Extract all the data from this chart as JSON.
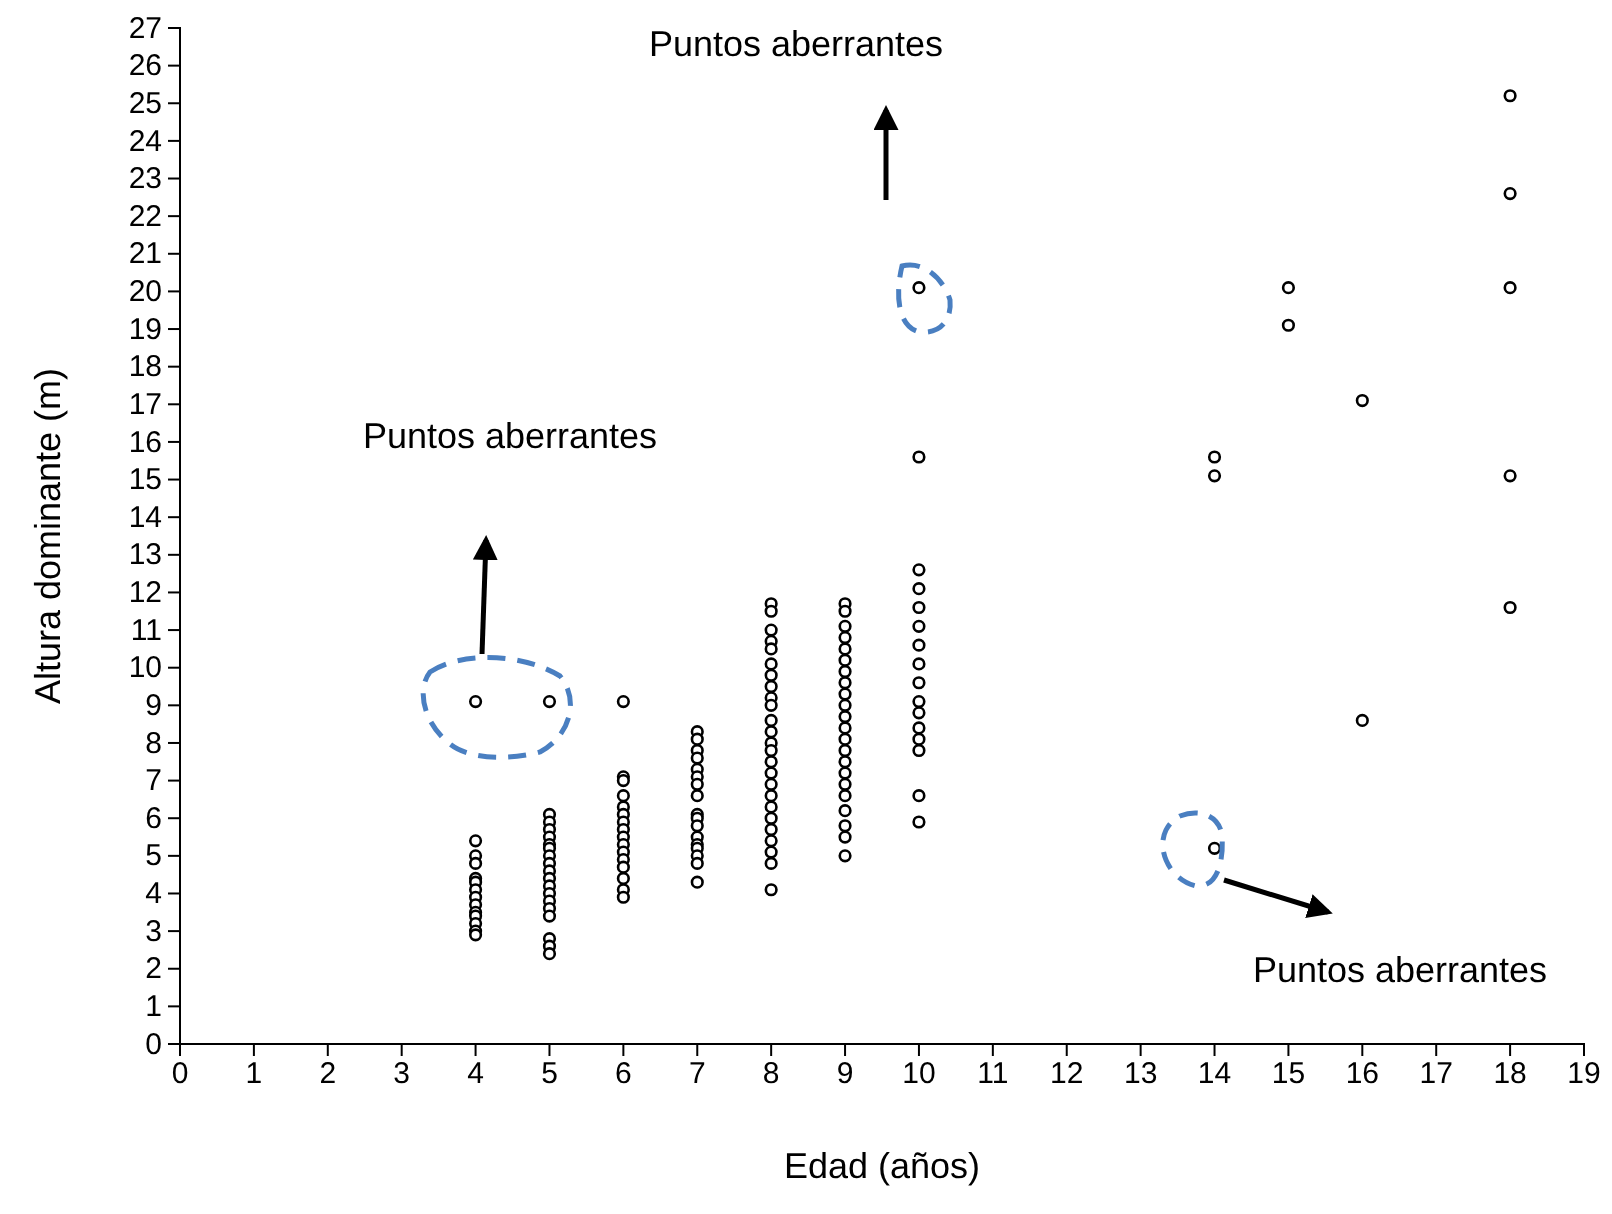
{
  "chart_data": {
    "type": "scatter",
    "xlabel": "Edad (años)",
    "ylabel": "Altura dominante (m)",
    "marker": "circle",
    "grid": false,
    "xlim": [
      0,
      19
    ],
    "xticks": [
      0,
      1,
      2,
      3,
      4,
      5,
      6,
      7,
      8,
      9,
      10,
      11,
      12,
      13,
      14,
      15,
      16,
      17,
      18,
      19
    ],
    "ylim": [
      0,
      27
    ],
    "yticks": [
      0,
      1,
      2,
      3,
      4,
      5,
      6,
      7,
      8,
      9,
      10,
      11,
      12,
      13,
      14,
      15,
      16,
      17,
      18,
      19,
      20,
      21,
      22,
      23,
      24,
      25,
      26,
      27
    ],
    "series": [
      {
        "color": "#000000",
        "x": [
          4,
          4,
          4,
          4,
          4,
          4,
          4,
          4,
          4,
          4,
          4,
          4,
          4,
          4,
          5,
          5,
          5,
          5,
          5,
          5,
          5,
          5,
          5,
          5,
          5,
          5,
          5,
          5,
          5,
          5,
          5,
          5,
          5,
          6,
          6,
          6,
          6,
          6,
          6,
          6,
          6,
          6,
          6,
          6,
          6,
          6,
          6,
          6,
          6,
          7,
          7,
          7,
          7,
          7,
          7,
          7,
          7,
          7,
          7,
          7,
          7,
          7,
          7,
          7,
          7,
          7,
          8,
          8,
          8,
          8,
          8,
          8,
          8,
          8,
          8,
          8,
          8,
          8,
          8,
          8,
          8,
          8,
          8,
          8,
          8,
          8,
          8,
          8,
          8,
          8,
          8,
          9,
          9,
          9,
          9,
          9,
          9,
          9,
          9,
          9,
          9,
          9,
          9,
          9,
          9,
          9,
          9,
          9,
          9,
          9,
          9,
          9,
          9,
          10,
          10,
          10,
          10,
          10,
          10,
          10,
          10,
          10,
          10,
          10,
          10,
          10,
          10,
          10,
          10,
          14,
          14,
          14,
          15,
          15,
          16,
          16,
          18,
          18,
          18,
          18,
          18
        ],
        "values": [
          9.1,
          5.4,
          5.0,
          4.8,
          4.4,
          4.3,
          4.1,
          3.9,
          3.7,
          3.5,
          3.4,
          3.2,
          3.0,
          2.9,
          9.1,
          6.1,
          5.9,
          5.7,
          5.5,
          5.3,
          5.2,
          5.0,
          4.8,
          4.6,
          4.4,
          4.2,
          4.0,
          3.8,
          3.6,
          3.4,
          2.8,
          2.6,
          2.4,
          9.1,
          7.1,
          7.0,
          6.6,
          6.3,
          6.1,
          5.9,
          5.7,
          5.5,
          5.3,
          5.1,
          4.9,
          4.7,
          4.4,
          4.1,
          3.9,
          8.3,
          8.1,
          7.8,
          7.6,
          7.3,
          7.1,
          6.9,
          6.6,
          6.1,
          6.0,
          5.8,
          5.5,
          5.3,
          5.2,
          5.0,
          4.8,
          4.3,
          11.7,
          11.5,
          11.0,
          10.7,
          10.5,
          10.1,
          9.8,
          9.5,
          9.2,
          9.0,
          8.6,
          8.3,
          8.0,
          7.8,
          7.5,
          7.2,
          6.9,
          6.6,
          6.3,
          6.0,
          5.7,
          5.4,
          5.1,
          4.8,
          4.1,
          11.7,
          11.5,
          11.1,
          10.8,
          10.5,
          10.2,
          9.9,
          9.6,
          9.3,
          9.0,
          8.7,
          8.4,
          8.1,
          7.8,
          7.5,
          7.2,
          6.9,
          6.6,
          6.2,
          5.8,
          5.5,
          5.0,
          20.1,
          15.6,
          12.6,
          12.1,
          11.6,
          11.1,
          10.6,
          10.1,
          9.6,
          9.1,
          8.8,
          8.4,
          8.1,
          7.8,
          6.6,
          5.9,
          15.6,
          15.1,
          5.2,
          20.1,
          19.1,
          17.1,
          8.6,
          25.2,
          22.6,
          20.1,
          15.1,
          11.6
        ]
      }
    ],
    "annotations": [
      "Puntos aberrantes",
      "Puntos aberrantes",
      "Puntos aberrantes"
    ]
  }
}
